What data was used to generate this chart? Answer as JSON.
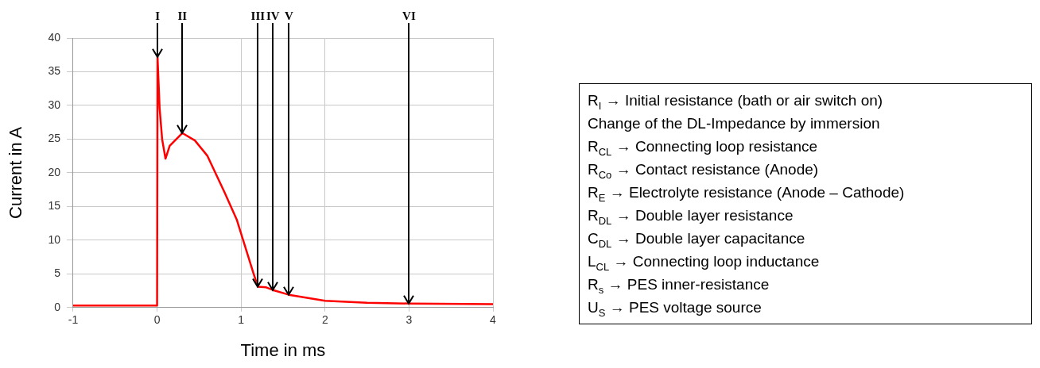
{
  "chart_data": {
    "type": "line",
    "xlabel": "Time in ms",
    "ylabel": "Current in A",
    "x": [
      -1,
      -0.5,
      0,
      0.005,
      0.03,
      0.06,
      0.1,
      0.15,
      0.3,
      0.45,
      0.6,
      0.8,
      0.95,
      1.05,
      1.15,
      1.2,
      1.3,
      1.38,
      1.57,
      2,
      2.5,
      3,
      4
    ],
    "series": [
      {
        "color": "#ff0000",
        "values": [
          0.3,
          0.3,
          0.3,
          37.2,
          29.6,
          25,
          22.1,
          24,
          25.9,
          24.8,
          22.5,
          17.2,
          13,
          9,
          5,
          3.1,
          3,
          2.6,
          1.9,
          1,
          0.7,
          0.6,
          0.5
        ]
      }
    ],
    "xlim": [
      -1,
      4
    ],
    "xticks": [
      -1,
      0,
      1,
      2,
      3,
      4
    ],
    "ylim": [
      0,
      40
    ],
    "yticks": [
      0,
      5,
      10,
      15,
      20,
      25,
      30,
      35,
      40
    ],
    "grid": true,
    "marker": "none",
    "line_style": "solid",
    "annotations": [
      {
        "text": "I",
        "x": 0.005,
        "y": 37.2
      },
      {
        "text": "II",
        "x": 0.3,
        "y": 25.9
      },
      {
        "text": "III",
        "x": 1.2,
        "y": 3.1
      },
      {
        "text": "IV",
        "x": 1.38,
        "y": 2.6
      },
      {
        "text": "V",
        "x": 1.57,
        "y": 1.9
      },
      {
        "text": "VI",
        "x": 3,
        "y": 0.6
      },
      "R$_{I}$ → Initial resistance (bath or air switch on)",
      "Change of the DL-Impedance by immersion",
      "R$_{CL}$ → Connecting loop resistance",
      "R$_{Co}$ → Contact resistance (Anode)",
      "R$_{E}$ → Electrolyte resistance (Anode – Cathode)",
      "R$_{DL}$ → Double layer resistance",
      "C$_{DL}$ → Double layer capacitance",
      "L$_{CL}$ → Connecting loop inductance",
      "R$_{s}$ → PES inner-resistance",
      "U$_{S}$ → PES voltage source"
    ]
  }
}
